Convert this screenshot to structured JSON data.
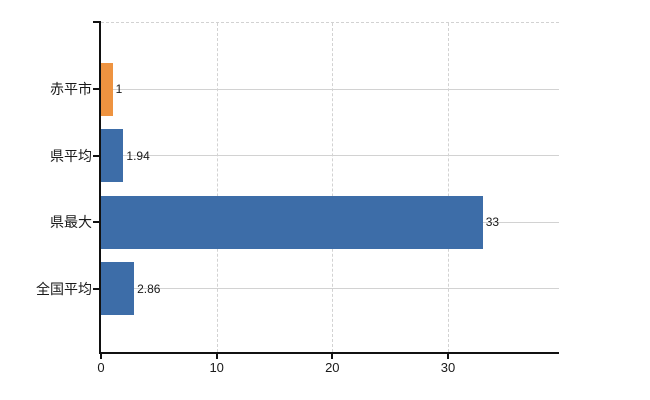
{
  "chart_data": {
    "type": "bar",
    "orientation": "horizontal",
    "title": "",
    "categories": [
      "赤平市",
      "県平均",
      "県最大",
      "全国平均"
    ],
    "values": [
      1,
      1.94,
      33,
      2.86
    ],
    "value_labels": [
      "1",
      "1.94",
      "33",
      "2.86"
    ],
    "bar_colors": [
      "#EE9340",
      "#3D6DA8",
      "#3D6DA8",
      "#3D6DA8"
    ],
    "x_axis": {
      "min": 0,
      "max": 39.6,
      "ticks": [
        0,
        10,
        20,
        30
      ],
      "tick_labels": [
        "0",
        "10",
        "20",
        "30"
      ]
    },
    "grid": {
      "vertical_lines": "dashed",
      "horizontal_category_lines": "solid",
      "plot_top_border": "dashed"
    },
    "legend": "none"
  },
  "colors": {
    "bar_blue": "#3D6DA8",
    "bar_orange": "#EE9340",
    "gridline": "#D2D2D2",
    "axis": "#111111",
    "text": "#1A1A1A",
    "background": "#FFFFFF"
  }
}
